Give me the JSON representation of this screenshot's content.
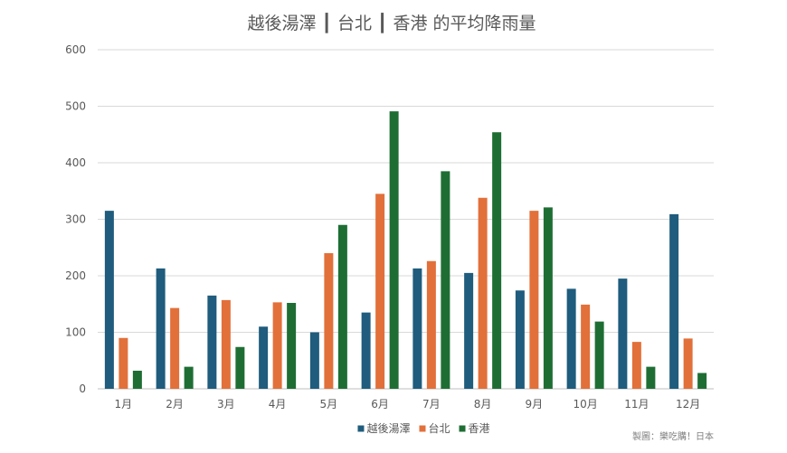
{
  "chart_data": {
    "type": "bar",
    "title": "越後湯澤 ┃ 台北 ┃ 香港 的平均降雨量",
    "categories": [
      "1月",
      "2月",
      "3月",
      "4月",
      "5月",
      "6月",
      "7月",
      "8月",
      "9月",
      "10月",
      "11月",
      "12月"
    ],
    "series": [
      {
        "name": "越後湯澤",
        "color": "#1f5c7d",
        "values": [
          315,
          213,
          165,
          110,
          100,
          135,
          213,
          205,
          174,
          177,
          195,
          309
        ]
      },
      {
        "name": "台北",
        "color": "#e2703a",
        "values": [
          90,
          143,
          157,
          153,
          240,
          345,
          226,
          338,
          315,
          149,
          83,
          89
        ]
      },
      {
        "name": "香港",
        "color": "#1e6e34",
        "values": [
          32,
          39,
          74,
          152,
          290,
          491,
          385,
          454,
          321,
          119,
          39,
          28
        ]
      }
    ],
    "yticks": [
      "0",
      "100",
      "200",
      "300",
      "400",
      "500",
      "600"
    ],
    "ylim": [
      0,
      600
    ],
    "xlabel": "",
    "ylabel": "",
    "grid": true,
    "legend_position": "bottom"
  },
  "credit": "製圖：樂吃購！日本"
}
